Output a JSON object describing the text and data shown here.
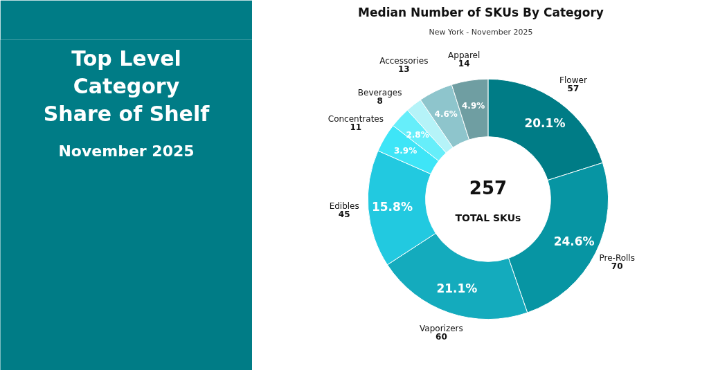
{
  "chart_data": {
    "type": "donut",
    "title": "Median Number of SKUs By Category",
    "subtitle": "New York - November 2025",
    "categories": [
      "Flower",
      "Pre-Rolls",
      "Vaporizers",
      "Edibles",
      "Concentrates",
      "Beverages",
      null,
      "Accessories",
      "Apparel"
    ],
    "values": [
      20.1,
      24.6,
      21.1,
      15.8,
      3.9,
      2.8,
      2.2,
      4.6,
      4.9
    ],
    "value_labels": [
      "20.1%",
      "24.6%",
      "21.1%",
      "15.8%",
      "3.9%",
      "2.8%",
      null,
      "4.6%",
      "4.9%"
    ],
    "colors": [
      "#007c86",
      "#0795a3",
      "#14abbd",
      "#22c9e0",
      "#3ee5f7",
      "#66eefa",
      "#b5f3f8",
      "#8ec5cc",
      "#6f9ea2"
    ],
    "annotations": [
      {
        "text": "57",
        "x": "Flower"
      },
      {
        "text": "70",
        "x": "Pre-Rolls"
      },
      {
        "text": "60",
        "x": "Vaporizers"
      },
      {
        "text": "45",
        "x": "Edibles"
      },
      {
        "text": "11",
        "x": "Concentrates"
      },
      {
        "text": "8",
        "x": "Beverages"
      },
      {
        "text": "13",
        "x": "Accessories"
      },
      {
        "text": "14",
        "x": "Apparel"
      },
      "257",
      "TOTAL SKUs",
      "Top Level",
      "Category",
      "Share of Shelf",
      "November 2025"
    ]
  }
}
